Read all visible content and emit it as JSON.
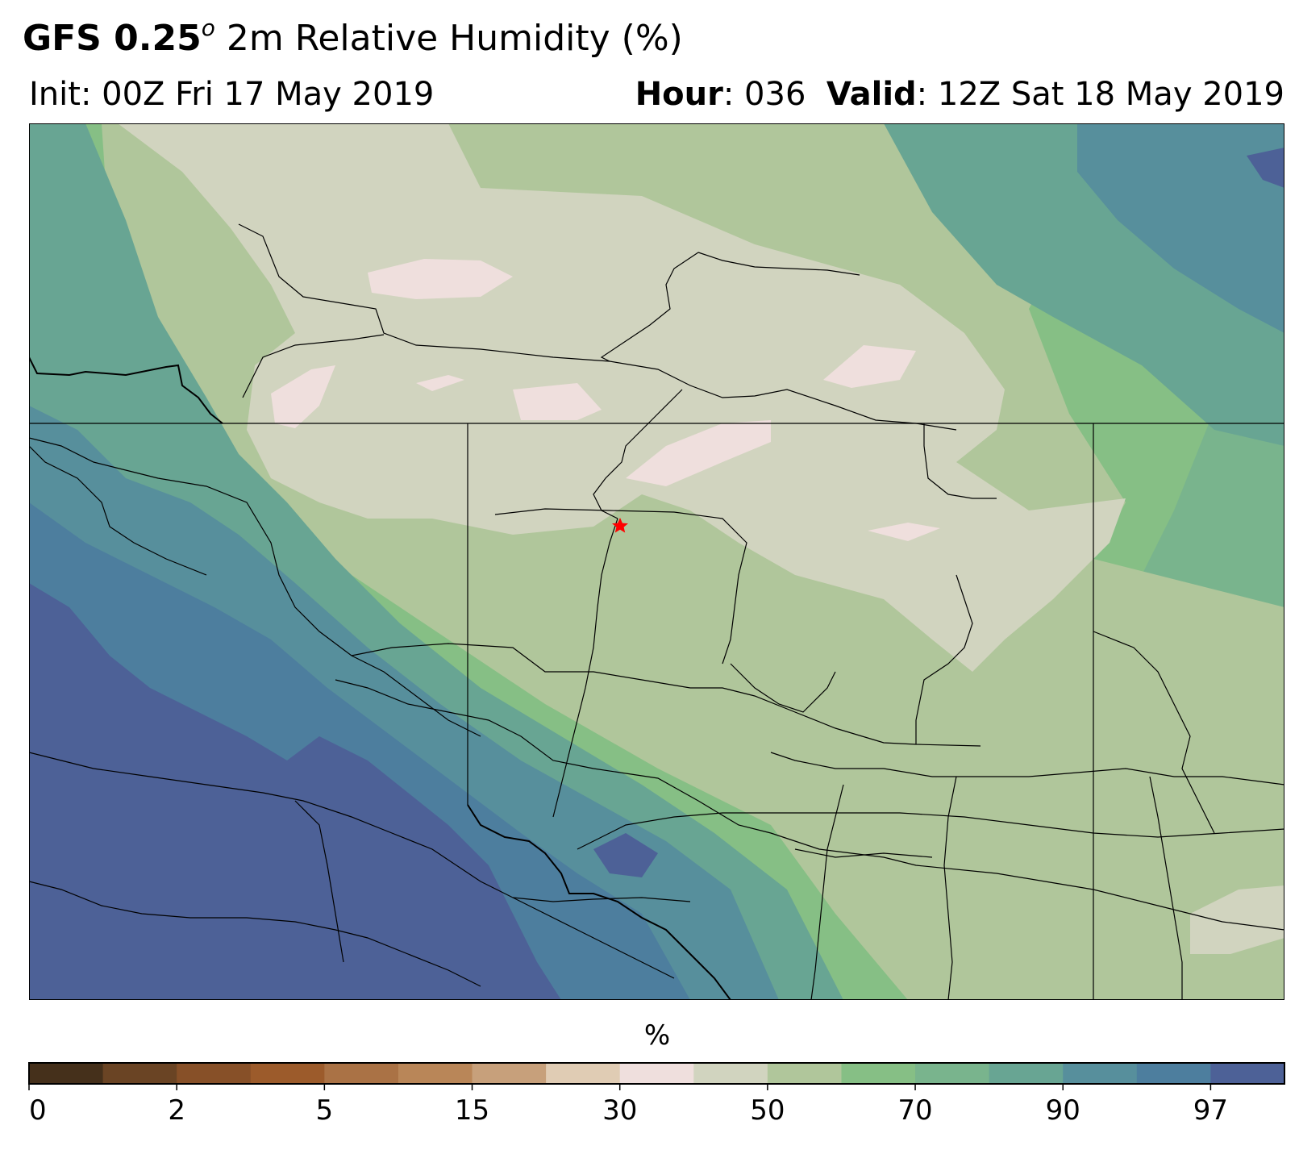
{
  "title": {
    "model": "GFS 0.25",
    "degree": "o",
    "field": "2m Relative Humidity (%)"
  },
  "init": "Init: 00Z Fri 17 May 2019",
  "hour_label": "Hour",
  "hour_value": ": 036",
  "valid_label": "Valid",
  "valid_value": ": 12Z Sat 18 May 2019",
  "colorbar": {
    "label": "%",
    "colors": [
      "#45301b",
      "#6a4424",
      "#875028",
      "#9c5b2b",
      "#aa7245",
      "#b98658",
      "#c7a07b",
      "#e0ccb4",
      "#efdfdd",
      "#d1d4bf",
      "#b0c69b",
      "#86bf85",
      "#79b48d",
      "#68a593",
      "#578f9c",
      "#4d7e9e",
      "#4d6197"
    ],
    "tick_labels": [
      "0",
      "2",
      "5",
      "15",
      "30",
      "50",
      "70",
      "90",
      "97"
    ],
    "tick_boundary_index": [
      0,
      2,
      4,
      6,
      8,
      10,
      12,
      14,
      16
    ]
  },
  "map": {
    "marker": "red-star",
    "marker_color": "#ff0000"
  }
}
